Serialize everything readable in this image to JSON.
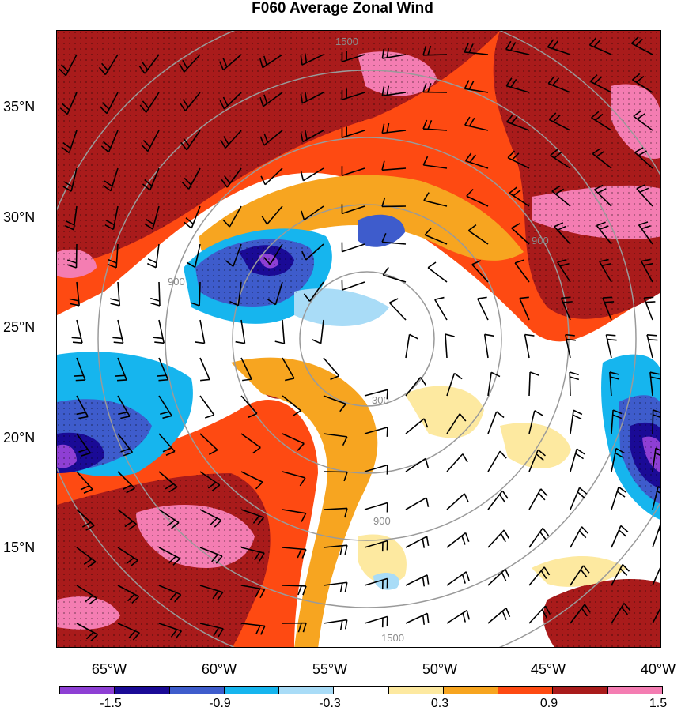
{
  "title": "F060 Average Zonal Wind",
  "latitude_labels": [
    "35°N",
    "30°N",
    "25°N",
    "20°N",
    "15°N"
  ],
  "longitude_labels": [
    "65°W",
    "60°W",
    "55°W",
    "50°W",
    "45°W",
    "40°W"
  ],
  "colorbar": {
    "colors": [
      "#8e3fd4",
      "#1a0a96",
      "#3e5ccc",
      "#16b5ee",
      "#a9dcf7",
      "#ffffff",
      "#fde9a0",
      "#f7a520",
      "#fe4a12",
      "#a91b1b",
      "#f47db2"
    ],
    "labels": [
      "-1.5",
      "-0.9",
      "-0.3",
      "0.3",
      "0.9",
      "1.5"
    ]
  },
  "ring_labels": [
    "300",
    "900",
    "1500"
  ],
  "icons": [
    "wind-barb-icon",
    "stipple-pattern-icon"
  ]
}
